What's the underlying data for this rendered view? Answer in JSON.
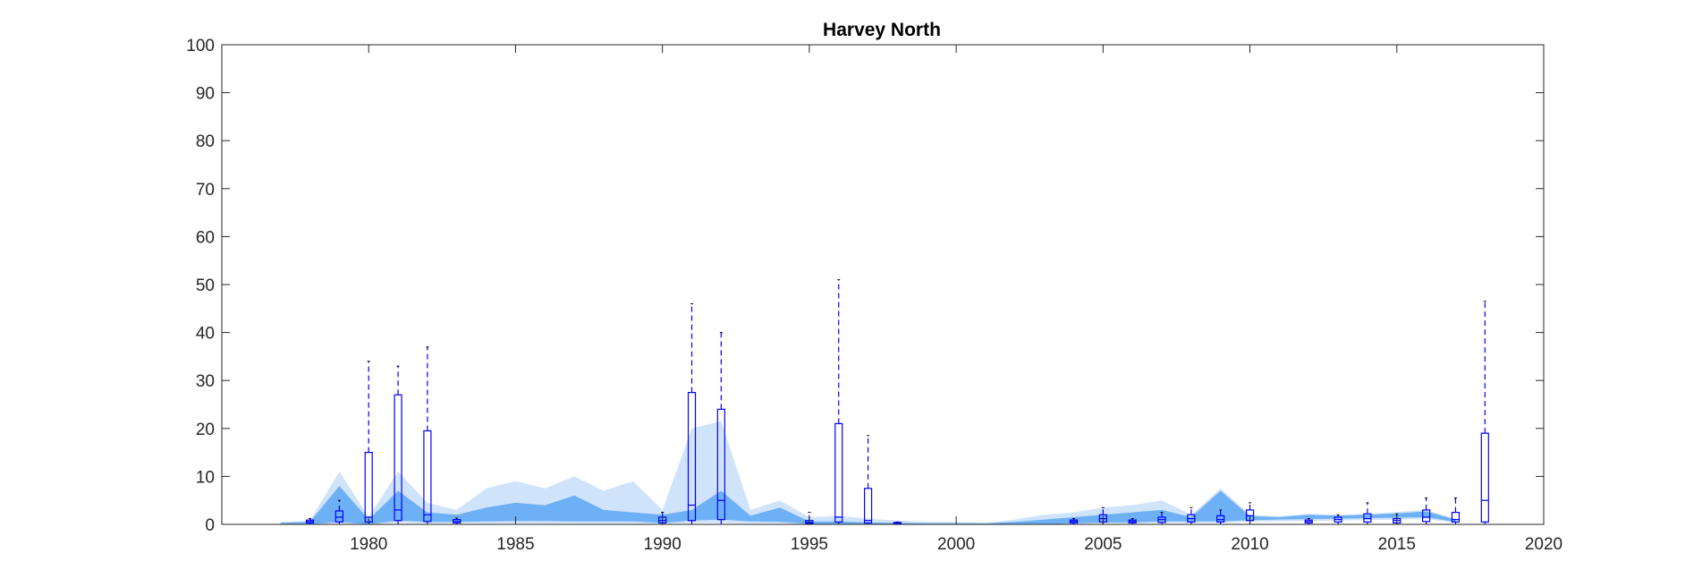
{
  "chart_data": {
    "type": "area",
    "title": "Harvey North",
    "xlabel": "",
    "ylabel": "",
    "xlim": [
      1975,
      2020
    ],
    "ylim": [
      0,
      100
    ],
    "x_ticks": [
      1980,
      1985,
      1990,
      1995,
      2000,
      2005,
      2010,
      2015,
      2020
    ],
    "y_ticks": [
      0,
      10,
      20,
      30,
      40,
      50,
      60,
      70,
      80,
      90,
      100
    ],
    "grid": false,
    "legend": "none",
    "colors": {
      "outer_band": "#cfe3fb",
      "inner_band": "#6db0f5",
      "median_line": "#4f9de8",
      "box": "#0000ff",
      "whisker": "#0000ff",
      "axis": "#262626"
    },
    "bands": {
      "x": [
        1977,
        1978,
        1979,
        1980,
        1981,
        1982,
        1983,
        1984,
        1985,
        1986,
        1987,
        1988,
        1989,
        1990,
        1991,
        1992,
        1993,
        1994,
        1995,
        1996,
        1997,
        1998,
        1999,
        2000,
        2001,
        2002,
        2003,
        2004,
        2005,
        2006,
        2007,
        2008,
        2009,
        2010,
        2011,
        2012,
        2013,
        2014,
        2015,
        2016,
        2017
      ],
      "outer_low": [
        0,
        0,
        0.2,
        0,
        0.3,
        0.2,
        0.2,
        0.2,
        0.2,
        0.2,
        0.2,
        0.2,
        0.2,
        0.1,
        0.3,
        0.3,
        0.2,
        0.2,
        0,
        0,
        0,
        0,
        0,
        0,
        0,
        0,
        0,
        0.1,
        0.2,
        0.2,
        0.3,
        0.3,
        0.3,
        0.5,
        0.6,
        0.7,
        0.8,
        0.9,
        1.0,
        1.1,
        0.3
      ],
      "outer_high": [
        0.5,
        0.8,
        11,
        1.5,
        11,
        4.5,
        3,
        7.5,
        9,
        7.5,
        10,
        7,
        9,
        3,
        20,
        21.5,
        3,
        5,
        1.5,
        1.8,
        1.2,
        0.8,
        0.6,
        0.5,
        0.3,
        1,
        2,
        2.5,
        3.5,
        4,
        5,
        2,
        7.5,
        2,
        1.7,
        2.2,
        2,
        2.2,
        2.6,
        3,
        1.2
      ],
      "inner_low": [
        0,
        0,
        0.5,
        0,
        0.8,
        0.5,
        0.5,
        0.6,
        0.7,
        0.7,
        0.6,
        0.6,
        0.6,
        0.3,
        0.8,
        1,
        0.6,
        0.5,
        0.1,
        0.1,
        0.1,
        0,
        0,
        0,
        0,
        0,
        0,
        0.2,
        0.4,
        0.4,
        0.6,
        0.6,
        0.6,
        0.9,
        1,
        1.1,
        1.2,
        1.3,
        1.4,
        1.5,
        0.5
      ],
      "inner_high": [
        0.3,
        0.5,
        8,
        1,
        7,
        2.5,
        2,
        3.5,
        4.5,
        4,
        6,
        3,
        2.5,
        2,
        3,
        7,
        1.8,
        3.5,
        0.6,
        0.6,
        0.4,
        0.3,
        0.2,
        0.2,
        0.2,
        0.5,
        1,
        1.5,
        2,
        2.5,
        3,
        1.5,
        7,
        1.7,
        1.5,
        2,
        1.8,
        2,
        2.3,
        2.7,
        1
      ]
    },
    "boxes": [
      {
        "x": 1978,
        "q1": 0.3,
        "median": 0.6,
        "q3": 0.9,
        "wlow": 0,
        "whigh": 1.2
      },
      {
        "x": 1979,
        "q1": 0.5,
        "median": 1.5,
        "q3": 2.8,
        "wlow": 0.1,
        "whigh": 5
      },
      {
        "x": 1980,
        "q1": 0.5,
        "median": 1.5,
        "q3": 15,
        "wlow": 0,
        "whigh": 34
      },
      {
        "x": 1981,
        "q1": 0.8,
        "median": 3,
        "q3": 27,
        "wlow": 0.1,
        "whigh": 33
      },
      {
        "x": 1982,
        "q1": 0.6,
        "median": 2,
        "q3": 19.5,
        "wlow": 0.1,
        "whigh": 37
      },
      {
        "x": 1983,
        "q1": 0.3,
        "median": 0.6,
        "q3": 1,
        "wlow": 0,
        "whigh": 1.3
      },
      {
        "x": 1990,
        "q1": 0.3,
        "median": 0.8,
        "q3": 1.5,
        "wlow": 0,
        "whigh": 2.5
      },
      {
        "x": 1991,
        "q1": 0.8,
        "median": 4,
        "q3": 27.5,
        "wlow": 0.1,
        "whigh": 46
      },
      {
        "x": 1992,
        "q1": 1,
        "median": 5,
        "q3": 24,
        "wlow": 0.1,
        "whigh": 40
      },
      {
        "x": 1995,
        "q1": 0.2,
        "median": 0.4,
        "q3": 0.8,
        "wlow": 0,
        "whigh": 2.5
      },
      {
        "x": 1996,
        "q1": 0.5,
        "median": 1.5,
        "q3": 21,
        "wlow": 0,
        "whigh": 51
      },
      {
        "x": 1997,
        "q1": 0.3,
        "median": 0.8,
        "q3": 7.5,
        "wlow": 0,
        "whigh": 18.5
      },
      {
        "x": 1998,
        "q1": 0.1,
        "median": 0.2,
        "q3": 0.4,
        "wlow": 0,
        "whigh": 0.5
      },
      {
        "x": 2004,
        "q1": 0.3,
        "median": 0.6,
        "q3": 0.9,
        "wlow": 0,
        "whigh": 1.2
      },
      {
        "x": 2005,
        "q1": 0.5,
        "median": 1.2,
        "q3": 2,
        "wlow": 0.1,
        "whigh": 3.5
      },
      {
        "x": 2006,
        "q1": 0.3,
        "median": 0.6,
        "q3": 0.9,
        "wlow": 0,
        "whigh": 1.2
      },
      {
        "x": 2007,
        "q1": 0.4,
        "median": 1,
        "q3": 1.5,
        "wlow": 0.1,
        "whigh": 2.5
      },
      {
        "x": 2008,
        "q1": 0.5,
        "median": 1.2,
        "q3": 2,
        "wlow": 0.1,
        "whigh": 3.5
      },
      {
        "x": 2009,
        "q1": 0.5,
        "median": 1,
        "q3": 1.8,
        "wlow": 0.1,
        "whigh": 3
      },
      {
        "x": 2010,
        "q1": 0.8,
        "median": 1.8,
        "q3": 3,
        "wlow": 0.2,
        "whigh": 4.5
      },
      {
        "x": 2012,
        "q1": 0.3,
        "median": 0.6,
        "q3": 0.9,
        "wlow": 0,
        "whigh": 1.2
      },
      {
        "x": 2013,
        "q1": 0.5,
        "median": 1,
        "q3": 1.5,
        "wlow": 0.1,
        "whigh": 2
      },
      {
        "x": 2014,
        "q1": 0.5,
        "median": 1.2,
        "q3": 2.2,
        "wlow": 0.1,
        "whigh": 4.5
      },
      {
        "x": 2015,
        "q1": 0.3,
        "median": 0.8,
        "q3": 1.2,
        "wlow": 0,
        "whigh": 2.2
      },
      {
        "x": 2016,
        "q1": 0.6,
        "median": 1.5,
        "q3": 3,
        "wlow": 0.1,
        "whigh": 5.5
      },
      {
        "x": 2017,
        "q1": 0.5,
        "median": 1,
        "q3": 2.5,
        "wlow": 0.1,
        "whigh": 5.5
      },
      {
        "x": 2018,
        "q1": 0.5,
        "median": 5,
        "q3": 19,
        "wlow": 0.1,
        "whigh": 46.5
      }
    ]
  }
}
